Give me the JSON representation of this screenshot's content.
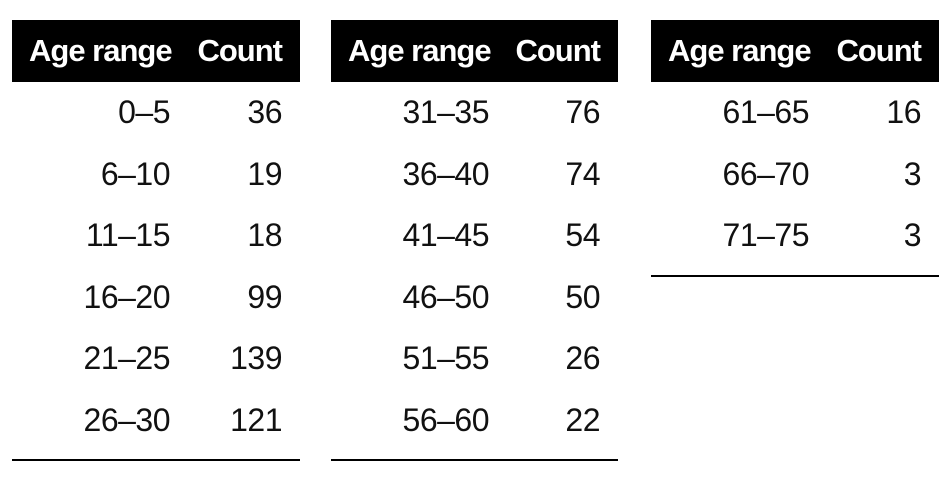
{
  "colors": {
    "header_bg": "#000000",
    "header_text": "#ffffff",
    "body_text": "#111111",
    "rule": "#000000",
    "background": "#ffffff"
  },
  "tables": [
    {
      "headers": {
        "age": "Age range",
        "count": "Count"
      },
      "rows": [
        {
          "age": "0–5",
          "count": "36"
        },
        {
          "age": "6–10",
          "count": "19"
        },
        {
          "age": "11–15",
          "count": "18"
        },
        {
          "age": "16–20",
          "count": "99"
        },
        {
          "age": "21–25",
          "count": "139"
        },
        {
          "age": "26–30",
          "count": "121"
        }
      ]
    },
    {
      "headers": {
        "age": "Age range",
        "count": "Count"
      },
      "rows": [
        {
          "age": "31–35",
          "count": "76"
        },
        {
          "age": "36–40",
          "count": "74"
        },
        {
          "age": "41–45",
          "count": "54"
        },
        {
          "age": "46–50",
          "count": "50"
        },
        {
          "age": "51–55",
          "count": "26"
        },
        {
          "age": "56–60",
          "count": "22"
        }
      ]
    },
    {
      "headers": {
        "age": "Age range",
        "count": "Count"
      },
      "rows": [
        {
          "age": "61–65",
          "count": "16"
        },
        {
          "age": "66–70",
          "count": "3"
        },
        {
          "age": "71–75",
          "count": "3"
        }
      ]
    }
  ],
  "chart_data": {
    "type": "table",
    "title": "",
    "columns": [
      "Age range",
      "Count"
    ],
    "rows": [
      [
        "0–5",
        36
      ],
      [
        "6–10",
        19
      ],
      [
        "11–15",
        18
      ],
      [
        "16–20",
        99
      ],
      [
        "21–25",
        139
      ],
      [
        "26–30",
        121
      ],
      [
        "31–35",
        76
      ],
      [
        "36–40",
        74
      ],
      [
        "41–45",
        54
      ],
      [
        "46–50",
        50
      ],
      [
        "51–55",
        26
      ],
      [
        "56–60",
        22
      ],
      [
        "61–65",
        16
      ],
      [
        "66–70",
        3
      ],
      [
        "71–75",
        3
      ]
    ],
    "layout": "three side-by-side panels, black header bars, right-aligned values, thin black bottom rule per panel"
  }
}
